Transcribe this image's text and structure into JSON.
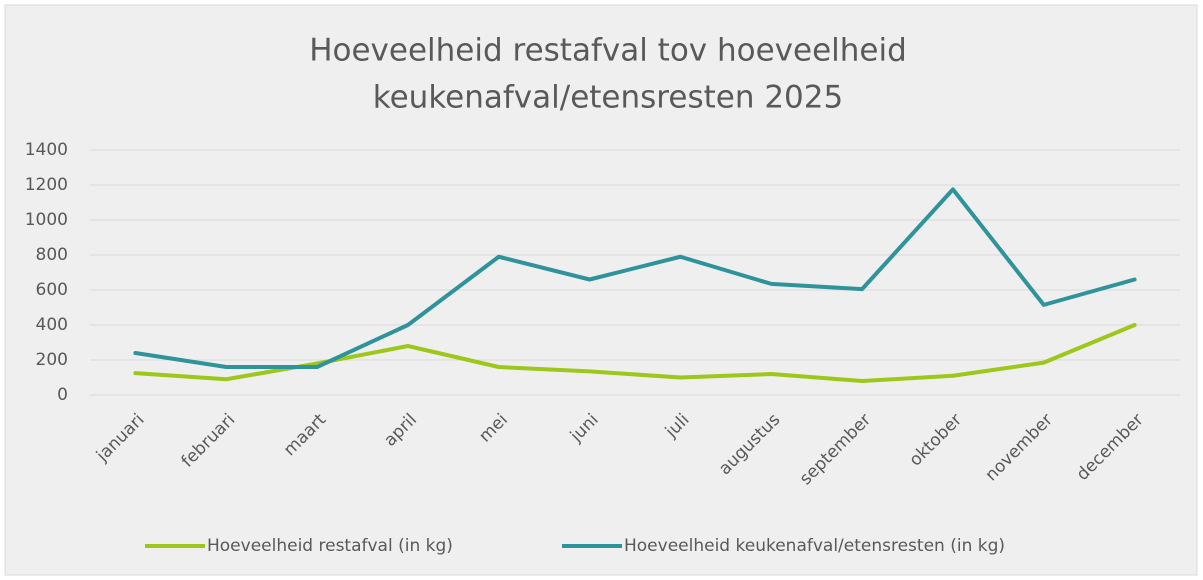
{
  "chart_data": {
    "type": "line",
    "title": [
      "Hoeveelheid restafval tov hoeveelheid",
      "keukenafval/etensresten 2025"
    ],
    "categories": [
      "januari",
      "februari",
      "maart",
      "april",
      "mei",
      "juni",
      "juli",
      "augustus",
      "september",
      "oktober",
      "november",
      "december"
    ],
    "series": [
      {
        "name": "Hoeveelheid restafval (in kg)",
        "color": "#9dc71a",
        "values": [
          125,
          90,
          180,
          280,
          160,
          135,
          100,
          120,
          80,
          110,
          185,
          400
        ]
      },
      {
        "name": "Hoeveelheid keukenafval/etensresten (in kg)",
        "color": "#2f939b",
        "values": [
          240,
          160,
          160,
          400,
          790,
          660,
          790,
          635,
          605,
          1175,
          515,
          660
        ]
      }
    ],
    "ylim": [
      0,
      1400
    ],
    "yticks": [
      0,
      200,
      400,
      600,
      800,
      1000,
      1200,
      1400
    ],
    "grid": true,
    "legend": "bottom"
  }
}
